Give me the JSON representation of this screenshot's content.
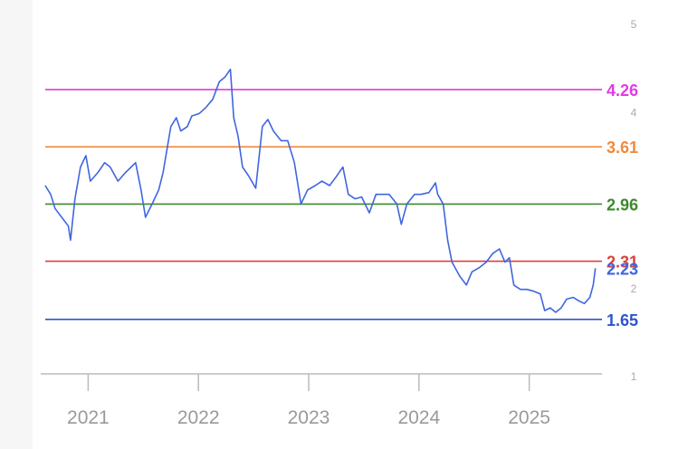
{
  "chart_data": {
    "type": "line",
    "x": [
      2020.61,
      2020.66,
      2020.7,
      2020.76,
      2020.82,
      2020.84,
      2020.88,
      2020.93,
      2020.98,
      2021.02,
      2021.09,
      2021.15,
      2021.2,
      2021.27,
      2021.34,
      2021.39,
      2021.43,
      2021.48,
      2021.52,
      2021.58,
      2021.64,
      2021.68,
      2021.75,
      2021.8,
      2021.84,
      2021.9,
      2021.94,
      2022.01,
      2022.07,
      2022.13,
      2022.19,
      2022.24,
      2022.29,
      2022.32,
      2022.36,
      2022.4,
      2022.46,
      2022.52,
      2022.58,
      2022.63,
      2022.68,
      2022.75,
      2022.81,
      2022.87,
      2022.93,
      2022.99,
      2023.06,
      2023.12,
      2023.19,
      2023.25,
      2023.31,
      2023.36,
      2023.42,
      2023.48,
      2023.55,
      2023.61,
      2023.66,
      2023.73,
      2023.8,
      2023.84,
      2023.89,
      2023.96,
      2024.02,
      2024.09,
      2024.15,
      2024.17,
      2024.22,
      2024.26,
      2024.3,
      2024.37,
      2024.43,
      2024.48,
      2024.55,
      2024.61,
      2024.67,
      2024.73,
      2024.78,
      2024.82,
      2024.86,
      2024.92,
      2024.98,
      2025.04,
      2025.1,
      2025.14,
      2025.19,
      2025.24,
      2025.29,
      2025.34,
      2025.4,
      2025.45,
      2025.5,
      2025.55,
      2025.58,
      2025.6
    ],
    "series": [
      {
        "color": "#3f66e0",
        "values": [
          3.17,
          3.07,
          2.91,
          2.81,
          2.71,
          2.55,
          3.02,
          3.38,
          3.51,
          3.22,
          3.32,
          3.43,
          3.38,
          3.22,
          3.32,
          3.38,
          3.43,
          3.12,
          2.81,
          2.96,
          3.12,
          3.32,
          3.84,
          3.94,
          3.79,
          3.84,
          3.96,
          3.99,
          4.06,
          4.15,
          4.35,
          4.4,
          4.49,
          3.94,
          3.73,
          3.38,
          3.27,
          3.14,
          3.84,
          3.92,
          3.79,
          3.68,
          3.68,
          3.43,
          2.96,
          3.12,
          3.17,
          3.22,
          3.17,
          3.27,
          3.38,
          3.07,
          3.02,
          3.04,
          2.86,
          3.07,
          3.07,
          3.07,
          2.96,
          2.73,
          2.96,
          3.07,
          3.07,
          3.09,
          3.2,
          3.07,
          2.96,
          2.55,
          2.3,
          2.14,
          2.04,
          2.19,
          2.24,
          2.3,
          2.4,
          2.45,
          2.3,
          2.35,
          2.04,
          1.99,
          1.99,
          1.97,
          1.94,
          1.75,
          1.78,
          1.73,
          1.78,
          1.88,
          1.9,
          1.86,
          1.83,
          1.9,
          2.04,
          2.23
        ]
      }
    ],
    "reference_lines": [
      {
        "value": 4.26,
        "color": "#e03ce0"
      },
      {
        "value": 3.61,
        "color": "#f08a3c"
      },
      {
        "value": 2.96,
        "color": "#3b8a2c"
      },
      {
        "value": 2.31,
        "color": "#d8423a"
      },
      {
        "value": 1.65,
        "color": "#2d55cc"
      }
    ],
    "xlim": [
      2020.57,
      2025.66
    ],
    "xticks": [
      2021,
      2022,
      2023,
      2024,
      2025
    ],
    "ylim": [
      1,
      5
    ],
    "yticks": [
      1,
      2,
      4,
      5
    ]
  }
}
